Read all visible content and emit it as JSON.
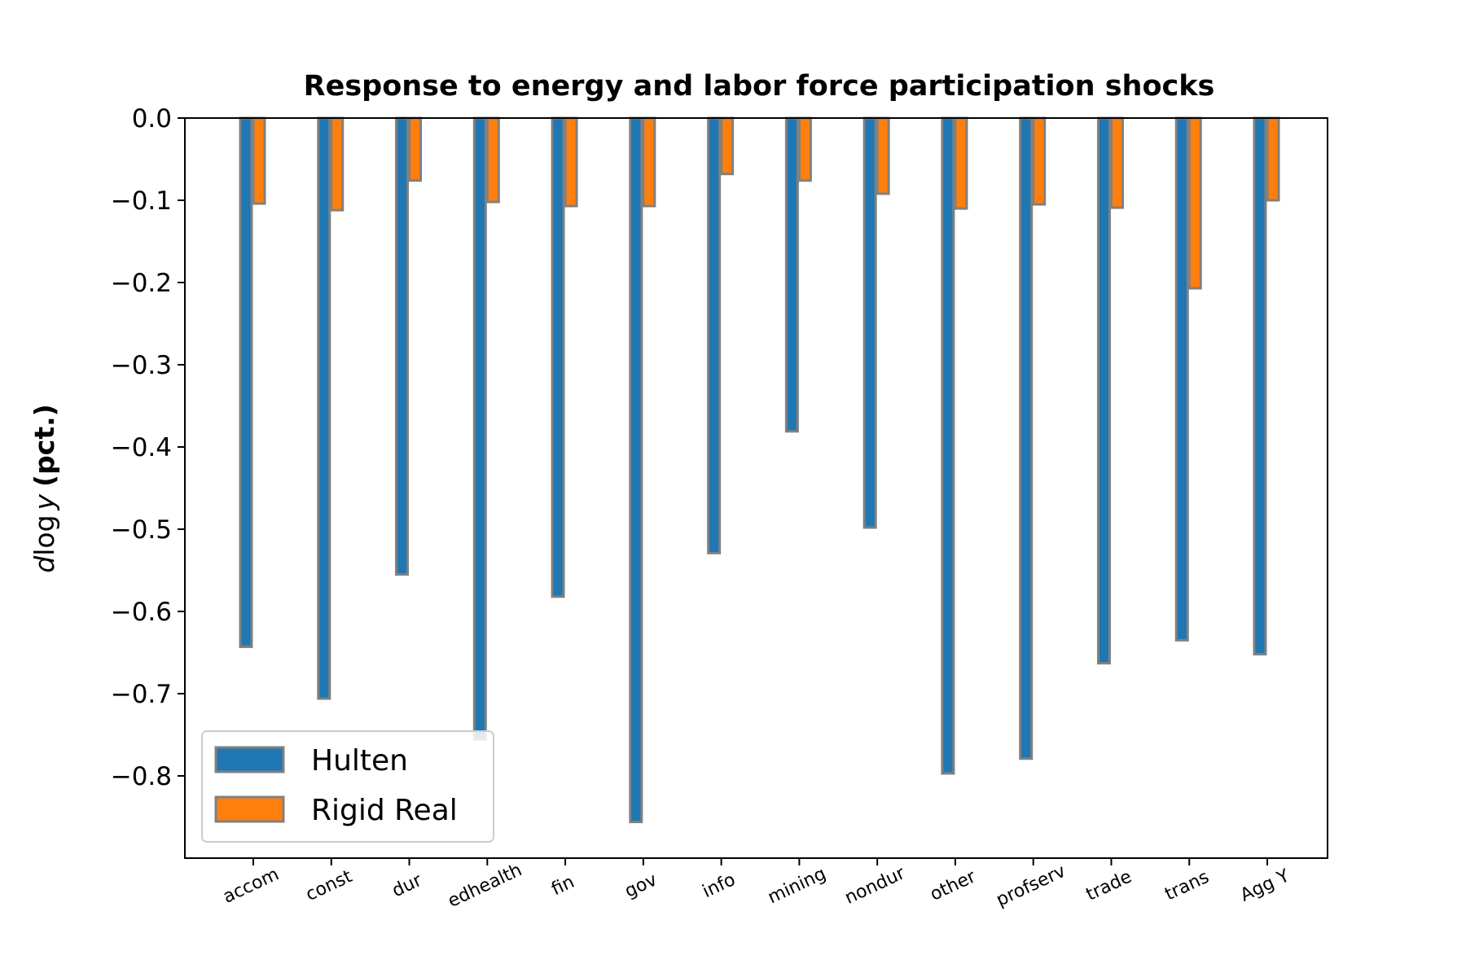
{
  "chart_data": {
    "type": "bar",
    "title": "Response to energy and labor force participation shocks",
    "ylabel_italic": "d",
    "ylabel_log": "log",
    "ylabel_var": "y",
    "ylabel_unit": "(pct.)",
    "categories": [
      "accom",
      "const",
      "dur",
      "edhealth",
      "fin",
      "gov",
      "info",
      "mining",
      "nondur",
      "other",
      "profserv",
      "trade",
      "trans",
      "Agg Y"
    ],
    "series": [
      {
        "name": "Hulten",
        "color": "#1f77b4",
        "values": [
          -0.643,
          -0.706,
          -0.555,
          -0.756,
          -0.582,
          -0.856,
          -0.529,
          -0.381,
          -0.498,
          -0.797,
          -0.779,
          -0.663,
          -0.635,
          -0.652
        ]
      },
      {
        "name": "Rigid Real",
        "color": "#ff7f0e",
        "values": [
          -0.104,
          -0.112,
          -0.076,
          -0.102,
          -0.107,
          -0.107,
          -0.068,
          -0.076,
          -0.092,
          -0.11,
          -0.105,
          -0.109,
          -0.207,
          -0.1
        ]
      }
    ],
    "ylim": [
      -0.9,
      0.0
    ],
    "yticks": [
      0.0,
      -0.1,
      -0.2,
      -0.3,
      -0.4,
      -0.5,
      -0.6,
      -0.7,
      -0.8
    ],
    "ytick_labels": [
      "0.0",
      "−0.1",
      "−0.2",
      "−0.3",
      "−0.4",
      "−0.5",
      "−0.6",
      "−0.7",
      "−0.8"
    ],
    "bar_edge_color": "#808080",
    "legend_position": "lower-left",
    "grid": false
  }
}
